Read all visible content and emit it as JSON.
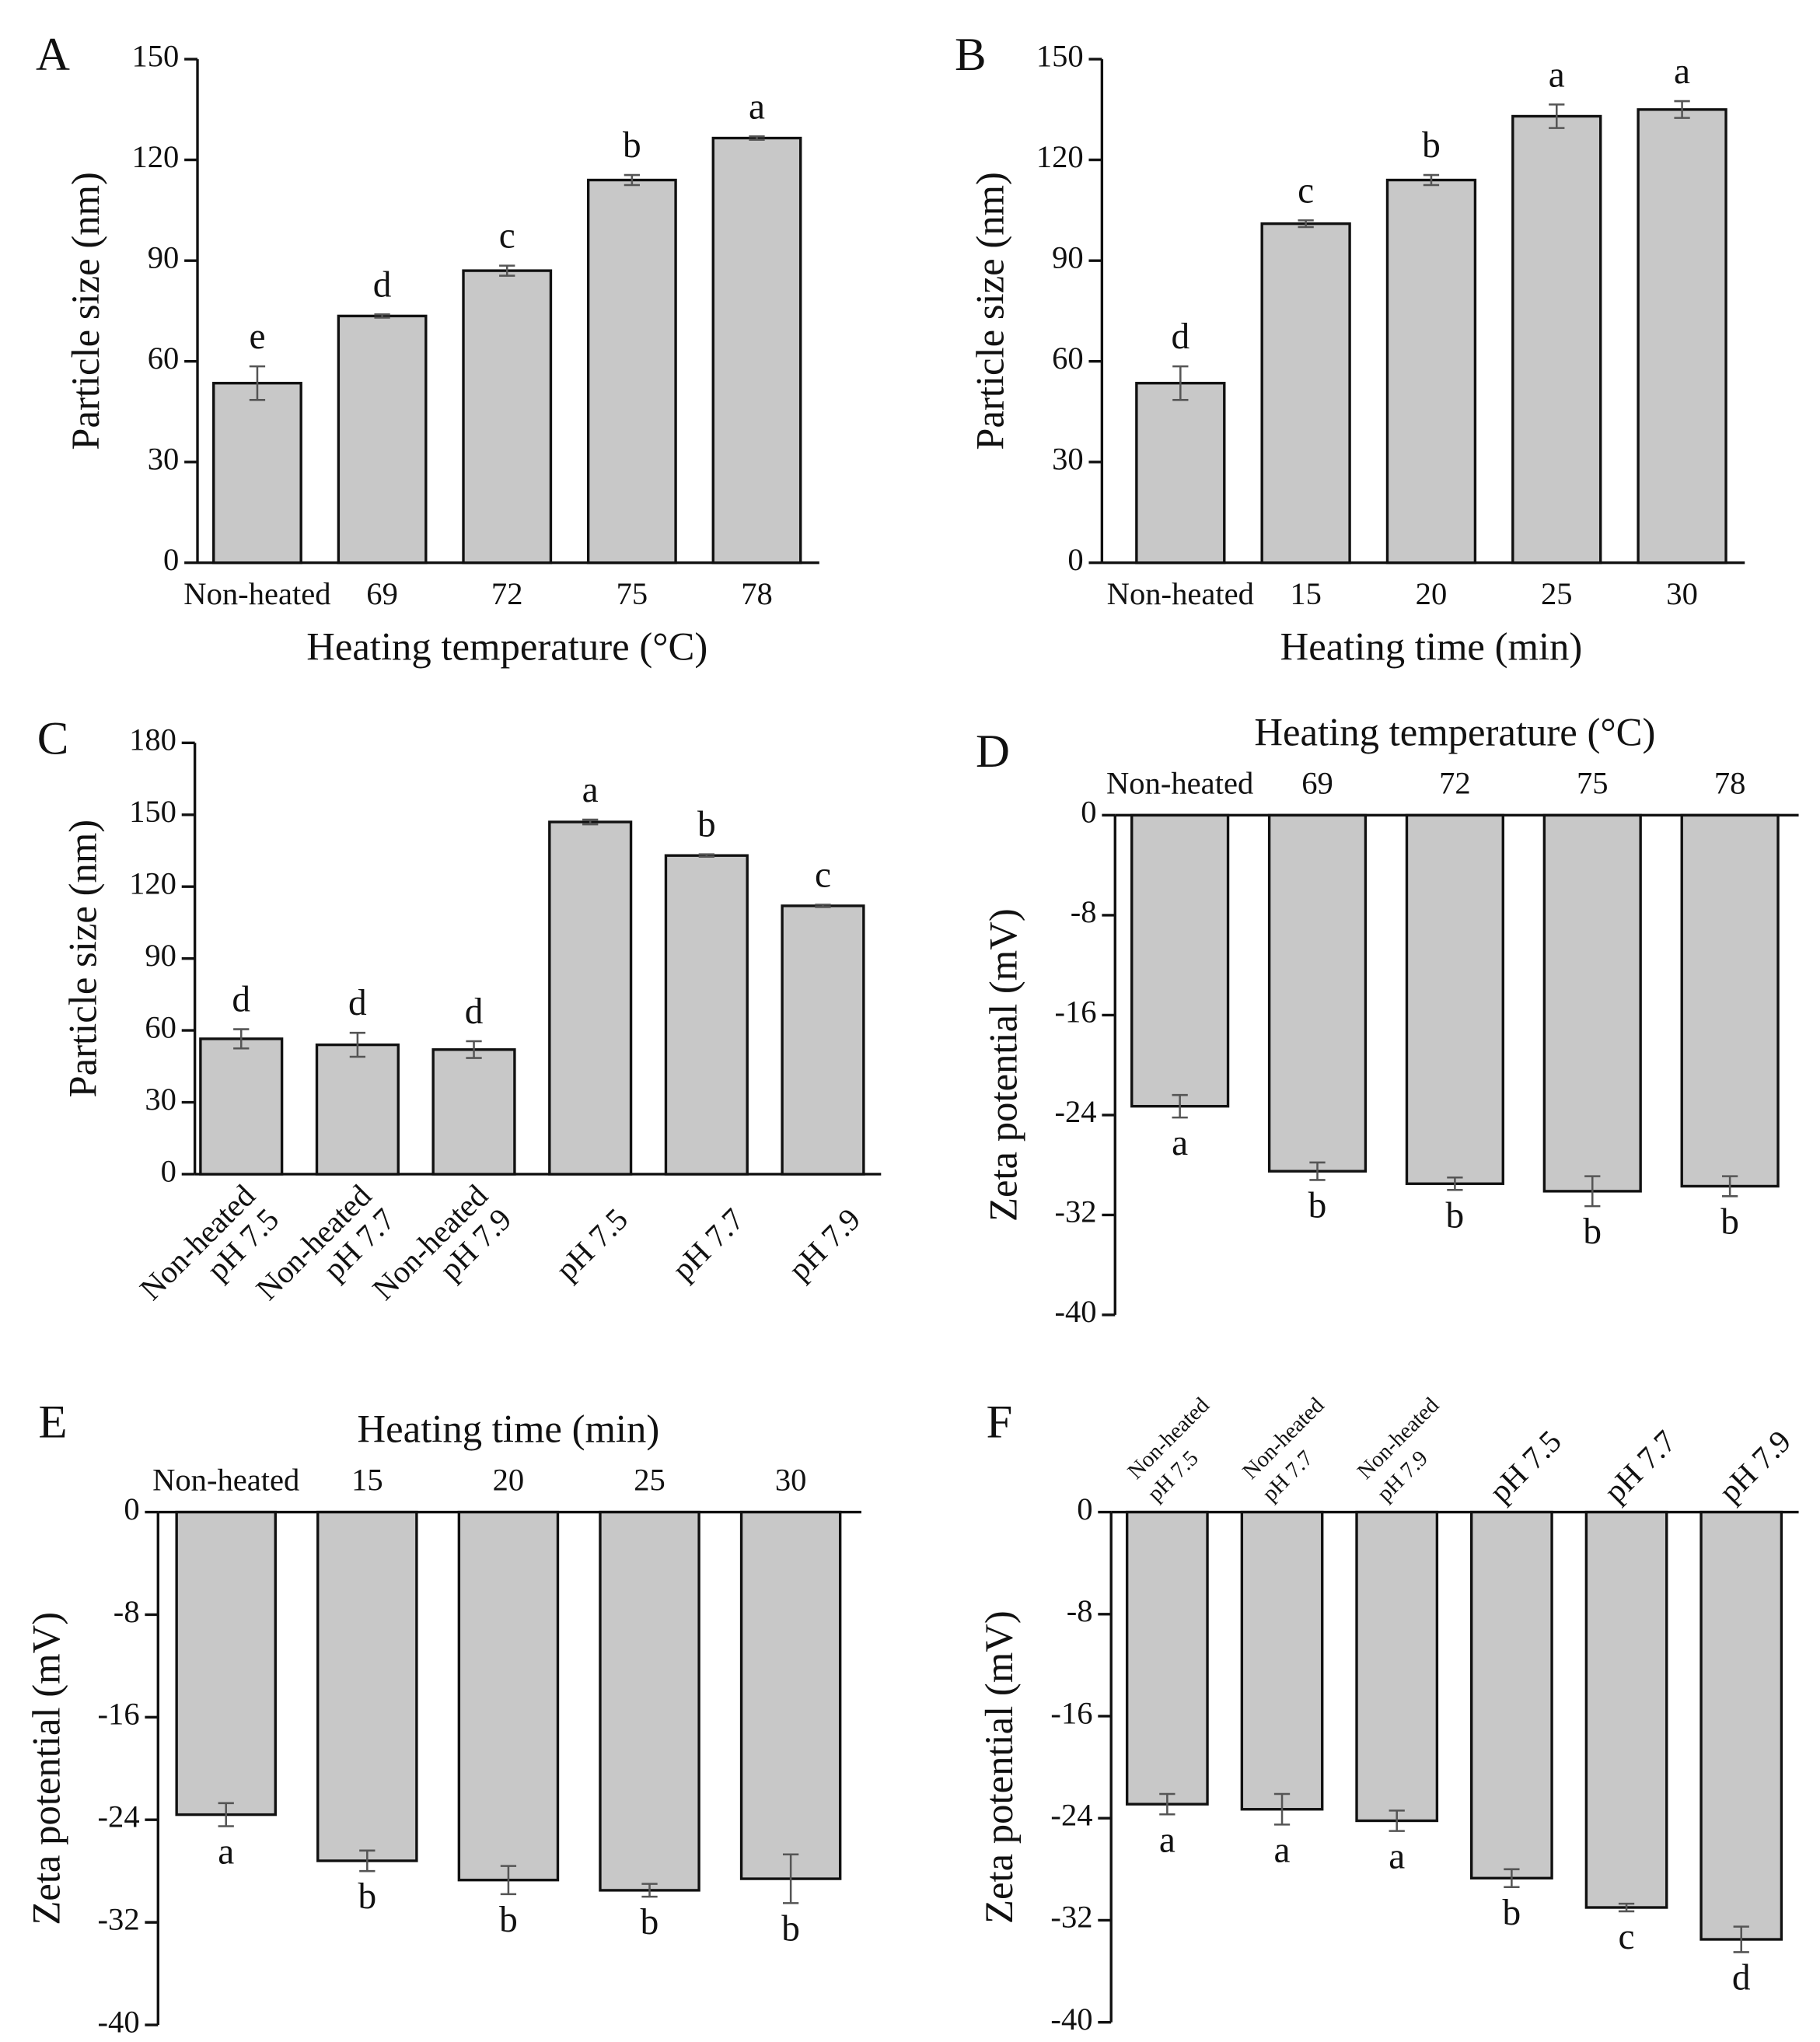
{
  "chart_data": [
    {
      "type": "bar",
      "panel": "A",
      "ylabel": "Particle size (nm)",
      "xlabel": "Heating temperature (°C)",
      "categories": [
        "Non-heated",
        "69",
        "72",
        "75",
        "78"
      ],
      "values": [
        53.5,
        73.5,
        87,
        114,
        126.5
      ],
      "errors": [
        5,
        0.5,
        1.5,
        1.5,
        0.5
      ],
      "annotations": [
        "e",
        "d",
        "c",
        "b",
        "a"
      ],
      "ylim": [
        0,
        150
      ],
      "yticks": [
        0,
        30,
        60,
        90,
        120,
        150
      ],
      "color": "#c8c8c8",
      "xaxis": "bottom"
    },
    {
      "type": "bar",
      "panel": "B",
      "ylabel": "Particle size (nm)",
      "xlabel": "Heating time (min)",
      "categories": [
        "Non-heated",
        "15",
        "20",
        "25",
        "30"
      ],
      "values": [
        53.5,
        101,
        114,
        133,
        135
      ],
      "errors": [
        5,
        1,
        1.5,
        3.5,
        2.5
      ],
      "annotations": [
        "d",
        "c",
        "b",
        "a",
        "a"
      ],
      "ylim": [
        0,
        150
      ],
      "yticks": [
        0,
        30,
        60,
        90,
        120,
        150
      ],
      "color": "#c8c8c8",
      "xaxis": "bottom"
    },
    {
      "type": "bar",
      "panel": "C",
      "ylabel": "Particle size (nm)",
      "categories": [
        [
          "Non-heated",
          "pH 7.5"
        ],
        [
          "Non-heated",
          "pH 7.7"
        ],
        [
          "Non-heated",
          "pH 7.9"
        ],
        [
          "pH 7.5"
        ],
        [
          "pH 7.7"
        ],
        [
          "pH 7.9"
        ]
      ],
      "values": [
        56.5,
        54,
        52,
        147,
        133,
        112
      ],
      "errors": [
        4,
        5,
        3.5,
        1,
        0.5,
        0.5
      ],
      "annotations": [
        "d",
        "d",
        "d",
        "a",
        "b",
        "c"
      ],
      "ylim": [
        0,
        180
      ],
      "yticks": [
        0,
        30,
        60,
        90,
        120,
        150,
        180
      ],
      "color": "#c8c8c8",
      "xaxis": "bottom"
    },
    {
      "type": "bar",
      "panel": "D",
      "ylabel": "Zeta potential (mV)",
      "xlabel": "Heating temperature (°C)",
      "categories": [
        "Non-heated",
        "69",
        "72",
        "75",
        "78"
      ],
      "values": [
        -23.3,
        -28.5,
        -29.5,
        -30.1,
        -29.7
      ],
      "errors": [
        0.9,
        0.7,
        0.5,
        1.2,
        0.8
      ],
      "annotations": [
        "a",
        "b",
        "b",
        "b",
        "b"
      ],
      "ylim": [
        -40,
        0
      ],
      "yticks": [
        0,
        -8,
        -16,
        -24,
        -32,
        -40
      ],
      "color": "#c8c8c8",
      "xaxis": "top"
    },
    {
      "type": "bar",
      "panel": "E",
      "ylabel": "Zeta potential (mV)",
      "xlabel": "Heating time (min)",
      "categories": [
        "Non-heated",
        "15",
        "20",
        "25",
        "30"
      ],
      "values": [
        -23.6,
        -27.2,
        -28.7,
        -29.5,
        -28.6
      ],
      "errors": [
        0.9,
        0.8,
        1.1,
        0.5,
        1.9
      ],
      "annotations": [
        "a",
        "b",
        "b",
        "b",
        "b"
      ],
      "ylim": [
        -40,
        0
      ],
      "yticks": [
        0,
        -8,
        -16,
        -24,
        -32,
        -40
      ],
      "color": "#c8c8c8",
      "xaxis": "top"
    },
    {
      "type": "bar",
      "panel": "F",
      "ylabel": "Zeta potential (mV)",
      "categories": [
        [
          "Non-heated",
          "pH 7.5"
        ],
        [
          "Non-heated",
          "pH 7.7"
        ],
        [
          "Non-heated",
          "pH 7.9"
        ],
        [
          "pH 7.5"
        ],
        [
          "pH 7.7"
        ],
        [
          "pH 7.9"
        ]
      ],
      "values": [
        -22.9,
        -23.3,
        -24.2,
        -28.7,
        -31,
        -33.5
      ],
      "errors": [
        0.8,
        1.2,
        0.8,
        0.7,
        0.3,
        1.0
      ],
      "annotations": [
        "a",
        "a",
        "a",
        "b",
        "c",
        "d"
      ],
      "ylim": [
        -40,
        0
      ],
      "yticks": [
        0,
        -8,
        -16,
        -24,
        -32,
        -40
      ],
      "color": "#c8c8c8",
      "xaxis": "top"
    }
  ]
}
